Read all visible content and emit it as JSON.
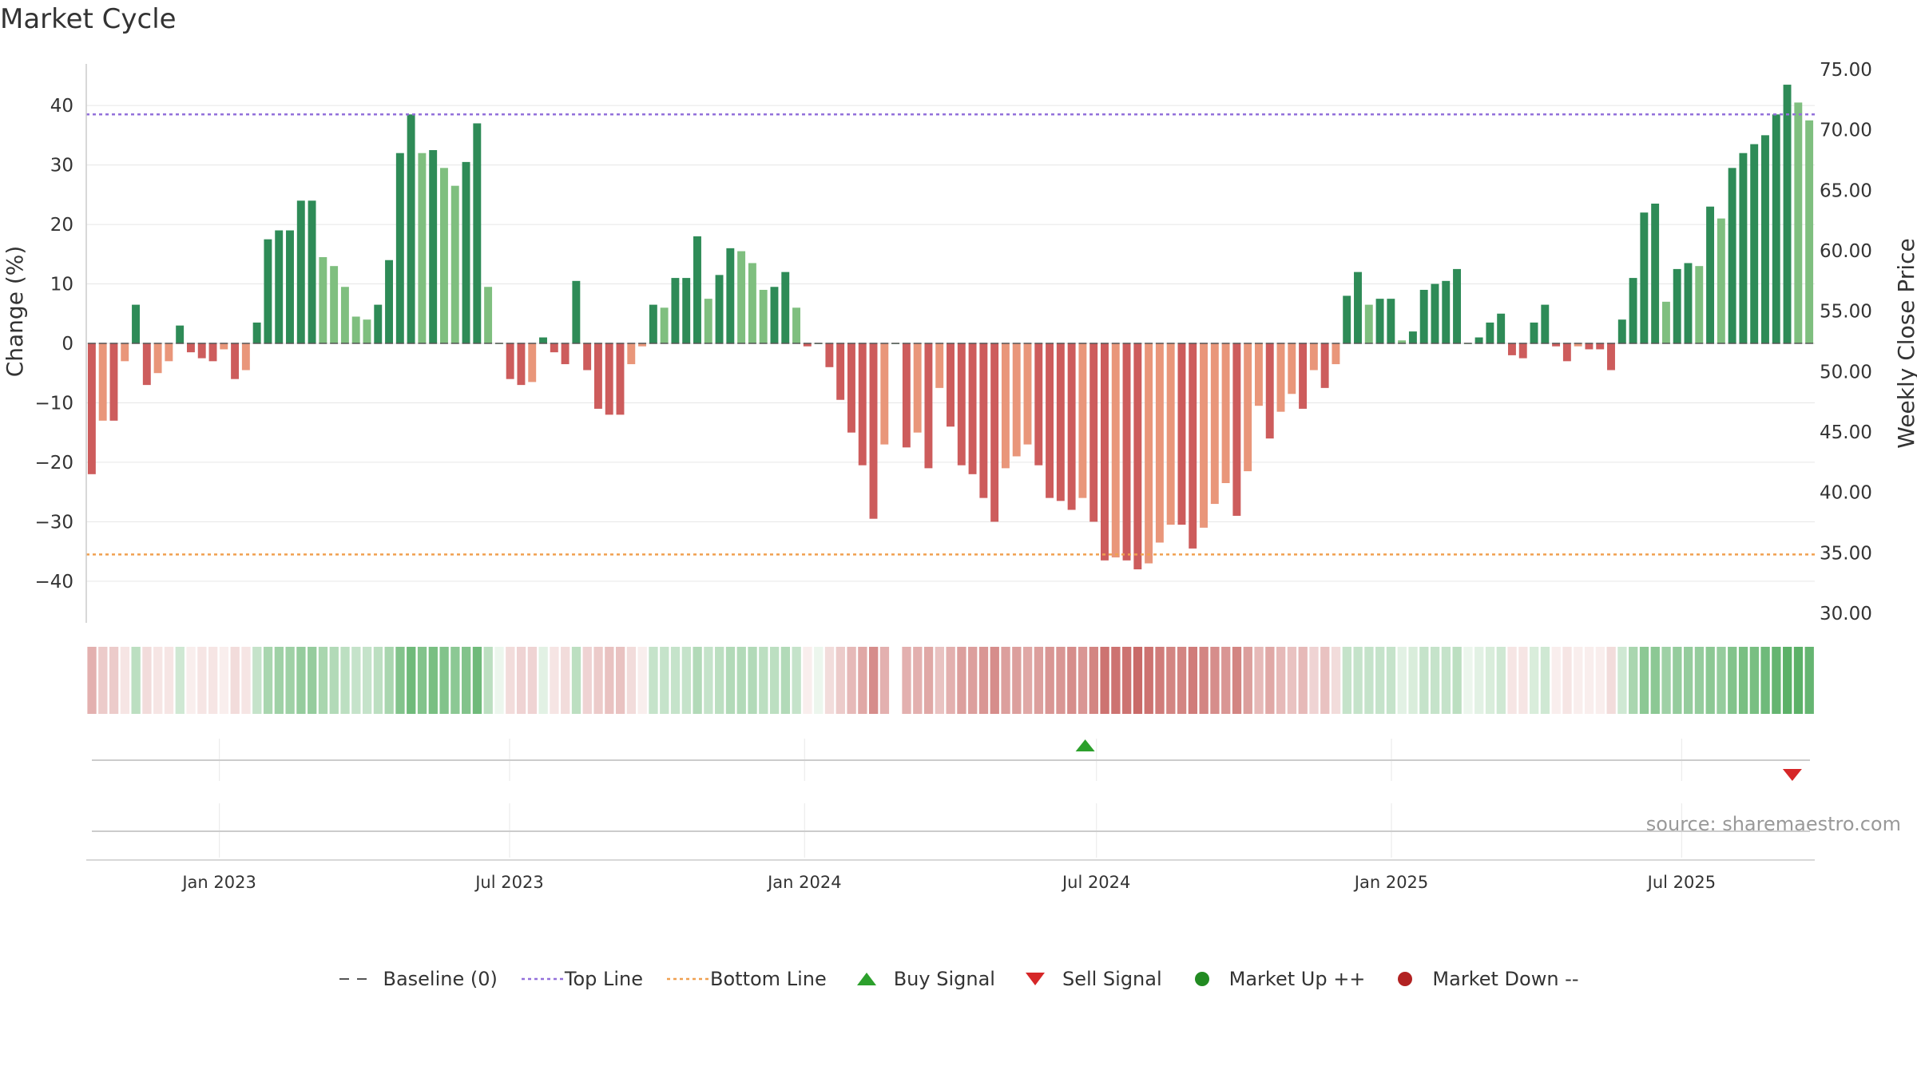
{
  "title": "Market Cycle",
  "source": "source: sharemaestro.com",
  "colors": {
    "up_strong": "#2e8b57",
    "up_light": "#7fbf7f",
    "down_strong": "#cd5c5c",
    "down_light": "#e9967a",
    "top_line": "#9370db",
    "bottom_line": "#f0a050",
    "baseline": "#555555",
    "buy": "#2ca02c",
    "sell": "#d62728",
    "market_up": "#228b22",
    "market_down": "#b22222"
  },
  "chart_data": {
    "type": "bar",
    "title": "Market Cycle",
    "ylabel": "Change (%)",
    "y2label": "Weekly Close Price",
    "ylim": [
      -47,
      47
    ],
    "y_ticks": [
      40,
      30,
      20,
      10,
      0,
      -10,
      -20,
      -30,
      -40
    ],
    "y_tick_labels": [
      "40",
      "30",
      "20",
      "10",
      "0",
      "−10",
      "−20",
      "−30",
      "−40"
    ],
    "y2lim": [
      30,
      75
    ],
    "y2_ticks": [
      "75.00",
      "70.00",
      "65.00",
      "60.00",
      "55.00",
      "50.00",
      "45.00",
      "40.00",
      "35.00",
      "30.00"
    ],
    "top_line": 38.5,
    "bottom_line": -35.5,
    "x_start": "2022-10-10",
    "x_end": "2025-09-22",
    "x_ticks": [
      {
        "date": "2023-01-01",
        "label": "Jan 2023"
      },
      {
        "date": "2023-07-01",
        "label": "Jul 2023"
      },
      {
        "date": "2024-01-01",
        "label": "Jan 2024"
      },
      {
        "date": "2024-07-01",
        "label": "Jul 2024"
      },
      {
        "date": "2025-01-01",
        "label": "Jan 2025"
      },
      {
        "date": "2025-07-01",
        "label": "Jul 2025"
      }
    ],
    "values": [
      -22,
      -13,
      -13,
      -3,
      6.5,
      -7,
      -5,
      -3,
      3,
      -1.5,
      -2.5,
      -3,
      -1,
      -6,
      -4.5,
      3.5,
      17.5,
      19,
      19,
      24,
      24,
      14.5,
      13,
      9.5,
      4.5,
      4,
      6.5,
      14,
      32,
      38.5,
      32,
      32.5,
      29.5,
      26.5,
      30.5,
      37,
      9.5,
      0,
      -6,
      -7,
      -6.5,
      1,
      -1.5,
      -3.5,
      10.5,
      -4.5,
      -11,
      -12,
      -12,
      -3.5,
      -0.5,
      6.5,
      6,
      11,
      11,
      18,
      7.5,
      11.5,
      16,
      15.5,
      13.5,
      9,
      9.5,
      12,
      6,
      -0.5,
      0,
      -4,
      -9.5,
      -15,
      -20.5,
      -29.5,
      -17,
      0,
      -17.5,
      -15,
      -21,
      -7.5,
      -14,
      -20.5,
      -22,
      -26,
      -30,
      -21,
      -19,
      -17,
      -20.5,
      -26,
      -26.5,
      -28,
      -26,
      -30,
      -36.5,
      -36,
      -36.5,
      -38,
      -37,
      -33.5,
      -30.5,
      -30.5,
      -34.5,
      -31,
      -27,
      -23.5,
      -29,
      -21.5,
      -10.5,
      -16,
      -11.5,
      -8.5,
      -11,
      -4.5,
      -7.5,
      -3.5,
      8,
      12,
      6.5,
      7.5,
      7.5,
      0.5,
      2,
      9,
      10,
      10.5,
      12.5,
      0,
      1,
      3.5,
      5,
      -2,
      -2.5,
      3.5,
      6.5,
      -0.5,
      -3,
      -0.5,
      -1,
      -1,
      -4.5,
      4,
      11,
      22,
      23.5,
      7,
      12.5,
      13.5,
      13,
      23,
      21,
      29.5,
      32,
      33.5,
      35,
      38.5,
      43.5,
      40.5,
      37.5
    ],
    "heatmap_weights": [
      0.45,
      0.3,
      0.3,
      0.15,
      0.35,
      0.2,
      0.15,
      0.15,
      0.25,
      0.1,
      0.15,
      0.15,
      0.1,
      0.2,
      0.15,
      0.3,
      0.45,
      0.5,
      0.5,
      0.55,
      0.55,
      0.45,
      0.4,
      0.35,
      0.3,
      0.3,
      0.35,
      0.45,
      0.65,
      0.75,
      0.65,
      0.7,
      0.65,
      0.6,
      0.65,
      0.75,
      0.35,
      0.1,
      0.2,
      0.25,
      0.25,
      0.15,
      0.15,
      0.2,
      0.35,
      0.25,
      0.3,
      0.35,
      0.35,
      0.2,
      0.1,
      0.3,
      0.3,
      0.3,
      0.3,
      0.4,
      0.3,
      0.35,
      0.4,
      0.4,
      0.4,
      0.35,
      0.35,
      0.4,
      0.3,
      0.1,
      0.1,
      0.2,
      0.3,
      0.4,
      0.5,
      0.65,
      0.45,
      0.0,
      0.45,
      0.45,
      0.5,
      0.35,
      0.45,
      0.55,
      0.55,
      0.6,
      0.65,
      0.55,
      0.55,
      0.5,
      0.55,
      0.6,
      0.6,
      0.65,
      0.6,
      0.7,
      0.8,
      0.8,
      0.8,
      0.85,
      0.8,
      0.75,
      0.7,
      0.7,
      0.75,
      0.7,
      0.65,
      0.6,
      0.7,
      0.55,
      0.4,
      0.5,
      0.4,
      0.35,
      0.4,
      0.25,
      0.35,
      0.2,
      0.3,
      0.3,
      0.3,
      0.3,
      0.3,
      0.15,
      0.2,
      0.3,
      0.3,
      0.3,
      0.35,
      0.1,
      0.15,
      0.2,
      0.25,
      0.15,
      0.15,
      0.2,
      0.25,
      0.1,
      0.15,
      0.1,
      0.1,
      0.1,
      0.2,
      0.25,
      0.45,
      0.6,
      0.6,
      0.5,
      0.55,
      0.55,
      0.55,
      0.6,
      0.55,
      0.65,
      0.7,
      0.7,
      0.75,
      0.8,
      0.85,
      0.85,
      0.8
    ],
    "buy_signals": [
      "2024-06-24"
    ],
    "sell_signals": [
      "2025-09-08"
    ],
    "legend": [
      "Baseline (0)",
      "Top Line",
      "Bottom Line",
      "Buy Signal",
      "Sell Signal",
      "Market Up ++",
      "Market Down --"
    ]
  }
}
